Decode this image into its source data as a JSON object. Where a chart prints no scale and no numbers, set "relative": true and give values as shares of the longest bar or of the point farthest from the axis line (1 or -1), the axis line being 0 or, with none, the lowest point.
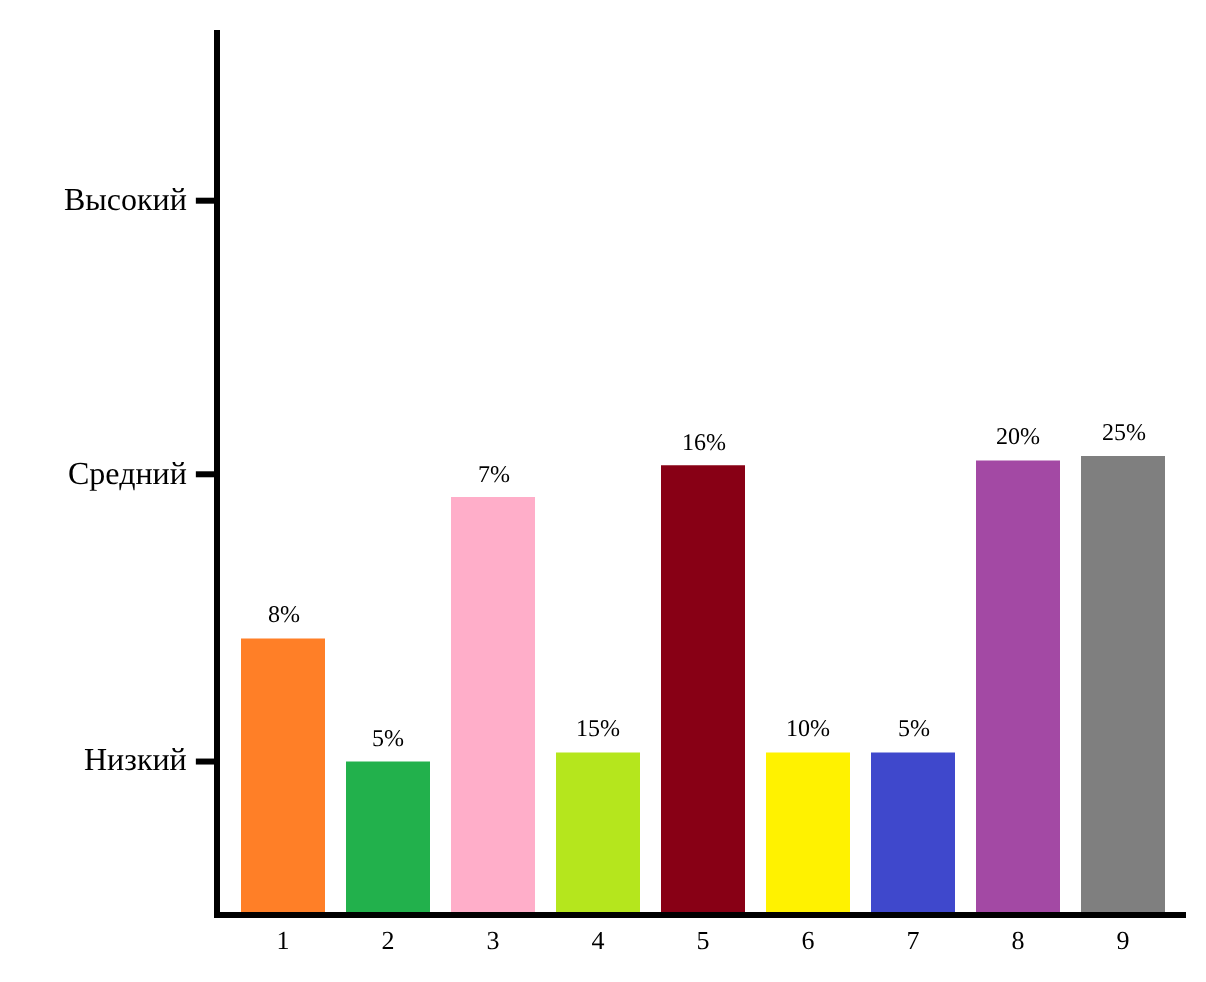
{
  "chart_data": {
    "type": "bar",
    "relative": true,
    "categories": [
      "1",
      "2",
      "3",
      "4",
      "5",
      "6",
      "7",
      "8",
      "9"
    ],
    "values": [
      0.6,
      0.33,
      0.91,
      0.35,
      0.98,
      0.35,
      0.35,
      0.99,
      1.0
    ],
    "colors": [
      "#ff7f27",
      "#22b14c",
      "#ffaec9",
      "#b5e61d",
      "#880015",
      "#fff200",
      "#3f48cc",
      "#a349a4",
      "#7f7f7f"
    ],
    "annotations": [
      {
        "text": "8%",
        "x": "1",
        "y": 0.6
      },
      {
        "text": "5%",
        "x": "2",
        "y": 0.33
      },
      {
        "text": "7%",
        "x": "3",
        "y": 0.91
      },
      {
        "text": "15%",
        "x": "4",
        "y": 0.35
      },
      {
        "text": "16%",
        "x": "5",
        "y": 0.98
      },
      {
        "text": "10%",
        "x": "6",
        "y": 0.35
      },
      {
        "text": "5%",
        "x": "7",
        "y": 0.35
      },
      {
        "text": "20%",
        "x": "8",
        "y": 0.99
      },
      {
        "text": "25%",
        "x": "9",
        "y": 1.0
      }
    ],
    "ref_lines": [
      {
        "axis": "y",
        "value": 0.33,
        "label": "Низкий"
      },
      {
        "axis": "y",
        "value": 0.96,
        "label": "Средний"
      },
      {
        "axis": "y",
        "value": 1.56,
        "label": "Высокий"
      }
    ],
    "legend": false
  }
}
